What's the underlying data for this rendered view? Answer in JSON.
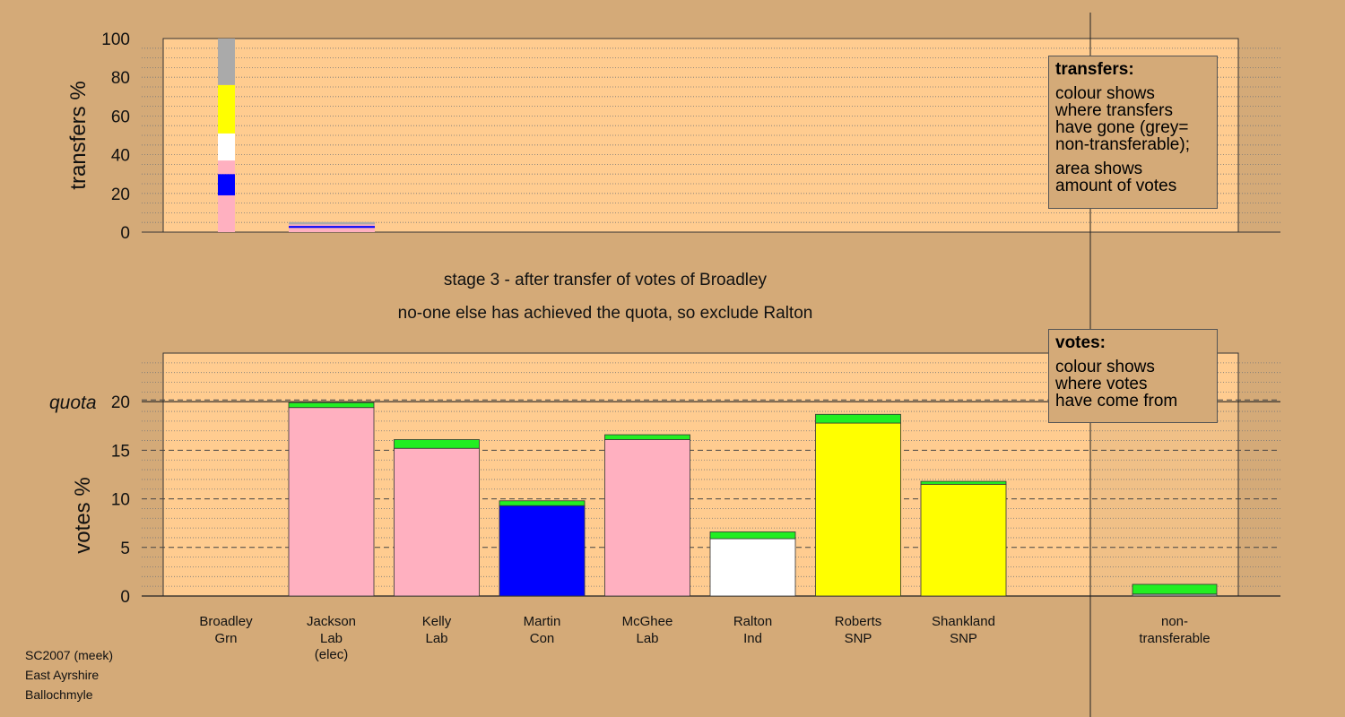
{
  "captions": {
    "stage": "stage 3 - after transfer of votes of Broadley",
    "decision": "no-one else has achieved the quota, so exclude Ralton"
  },
  "source": {
    "line1": "SC2007 (meek)",
    "line2": "East Ayrshire",
    "line3": "Ballochmyle"
  },
  "legend_transfers": {
    "title": "transfers:",
    "lines": [
      "colour shows",
      "where transfers",
      "have gone (grey=",
      "non-transferable);"
    ],
    "lines2": [
      "area shows",
      "amount of votes"
    ]
  },
  "legend_votes": {
    "title": "votes:",
    "lines": [
      "colour shows",
      "where votes",
      "have come from"
    ]
  },
  "colors": {
    "Lab": "#ffb0c0",
    "Con": "#0000ff",
    "Ind": "#ffffff",
    "SNP": "#ffff00",
    "Grn": "#22ee22",
    "NT": "#aaaaaa",
    "background": "#d4aa78",
    "plot": "#ffcc90"
  },
  "chart_data": [
    {
      "type": "bar",
      "ylabel": "transfers %",
      "ylim": [
        0,
        100
      ],
      "yticks": [
        0,
        20,
        40,
        60,
        80,
        100
      ],
      "transfer_bar": {
        "source": "Broadley",
        "segments": [
          {
            "party": "Lab",
            "value": 19
          },
          {
            "party": "Con",
            "value": 11
          },
          {
            "party": "Lab",
            "value": 7
          },
          {
            "party": "Ind",
            "value": 14
          },
          {
            "party": "SNP",
            "value": 25
          },
          {
            "party": "NT",
            "value": 24
          }
        ]
      },
      "small_bar": {
        "segments": [
          {
            "party": "Lab",
            "value": 2.2
          },
          {
            "party": "Con",
            "value": 1.0
          },
          {
            "party": "Lab",
            "value": 0.8
          },
          {
            "party": "NT",
            "value": 1.2
          }
        ]
      }
    },
    {
      "type": "bar",
      "ylabel": "votes %",
      "ylim": [
        0,
        25
      ],
      "yticks": [
        0,
        5,
        10,
        15,
        20
      ],
      "quota": 20,
      "quota_label": "quota",
      "candidates": [
        {
          "name": "Broadley",
          "party": "Grn",
          "elected": "",
          "base": 0,
          "transfer": 0,
          "base_color": "Grn"
        },
        {
          "name": "Jackson",
          "party": "Lab",
          "elected": "(elec)",
          "base": 19.4,
          "transfer": 0.5,
          "base_color": "Lab"
        },
        {
          "name": "Kelly",
          "party": "Lab",
          "elected": "",
          "base": 15.2,
          "transfer": 0.9,
          "base_color": "Lab"
        },
        {
          "name": "Martin",
          "party": "Con",
          "elected": "",
          "base": 9.3,
          "transfer": 0.5,
          "base_color": "Con"
        },
        {
          "name": "McGhee",
          "party": "Lab",
          "elected": "",
          "base": 16.1,
          "transfer": 0.5,
          "base_color": "Lab"
        },
        {
          "name": "Ralton",
          "party": "Ind",
          "elected": "",
          "base": 5.9,
          "transfer": 0.7,
          "base_color": "Ind"
        },
        {
          "name": "Roberts",
          "party": "SNP",
          "elected": "",
          "base": 17.8,
          "transfer": 0.9,
          "base_color": "SNP"
        },
        {
          "name": "Shankland",
          "party": "SNP",
          "elected": "",
          "base": 11.5,
          "transfer": 0.3,
          "base_color": "SNP"
        }
      ],
      "nontransferable": {
        "label1": "non-",
        "label2": "transferable",
        "base": 0.2,
        "transfer": 1.0
      }
    }
  ]
}
